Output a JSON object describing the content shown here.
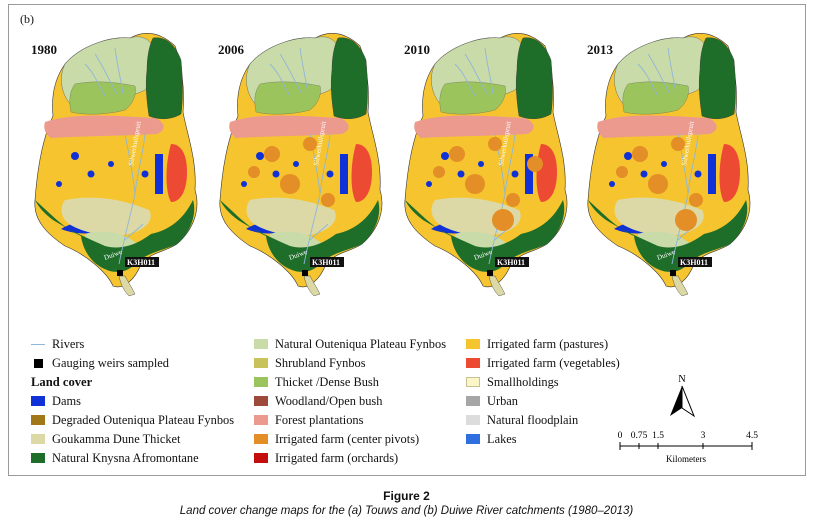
{
  "panel_label": "(b)",
  "years": [
    "1980",
    "2006",
    "2010",
    "2013"
  ],
  "map_labels": {
    "river_upper": "Silwerkuilspruit",
    "river_lower": "Duiwe",
    "weir": "K3H011"
  },
  "legend": {
    "rivers": "Rivers",
    "weirs": "Gauging weirs sampled",
    "heading": "Land cover",
    "col1": [
      {
        "label": "Dams",
        "color": "#1030d8"
      },
      {
        "label": "Degraded Outeniqua Plateau Fynbos",
        "color": "#a07818"
      },
      {
        "label": "Goukamma Dune Thicket",
        "color": "#ddd9a6"
      },
      {
        "label": "Natural Knysna Afromontane",
        "color": "#1e6e2a"
      }
    ],
    "col2": [
      {
        "label": "Natural Outeniqua Plateau Fynbos",
        "color": "#c9dba8"
      },
      {
        "label": "Shrubland Fynbos",
        "color": "#c8c25a"
      },
      {
        "label": "Thicket /Dense Bush",
        "color": "#9cc45c"
      },
      {
        "label": "Woodland/Open bush",
        "color": "#9e4a3a"
      },
      {
        "label": "Forest plantations",
        "color": "#ec9a8e"
      },
      {
        "label": "Irrigated farm (center pivots)",
        "color": "#e38e26"
      },
      {
        "label": "Irrigated farm (orchards)",
        "color": "#c40e0e"
      }
    ],
    "col3": [
      {
        "label": "Irrigated farm (pastures)",
        "color": "#f6c42e"
      },
      {
        "label": "Irrigated farm (vegetables)",
        "color": "#ec4a32"
      },
      {
        "label": "Smallholdings",
        "color": "#fbf6c8"
      },
      {
        "label": "Urban",
        "color": "#a6a6a6"
      },
      {
        "label": "Natural floodplain",
        "color": "#dcdcdc"
      },
      {
        "label": "Lakes",
        "color": "#2f6fe0"
      }
    ]
  },
  "scale": {
    "north": "N",
    "ticks": [
      "0",
      "0.75",
      "1.5",
      "3",
      "4.5"
    ],
    "unit": "Kilometers"
  },
  "caption": {
    "title": "Figure 2",
    "text": "Land cover change maps for the (a) Touws and (b) Duiwe River catchments (1980–2013)"
  }
}
